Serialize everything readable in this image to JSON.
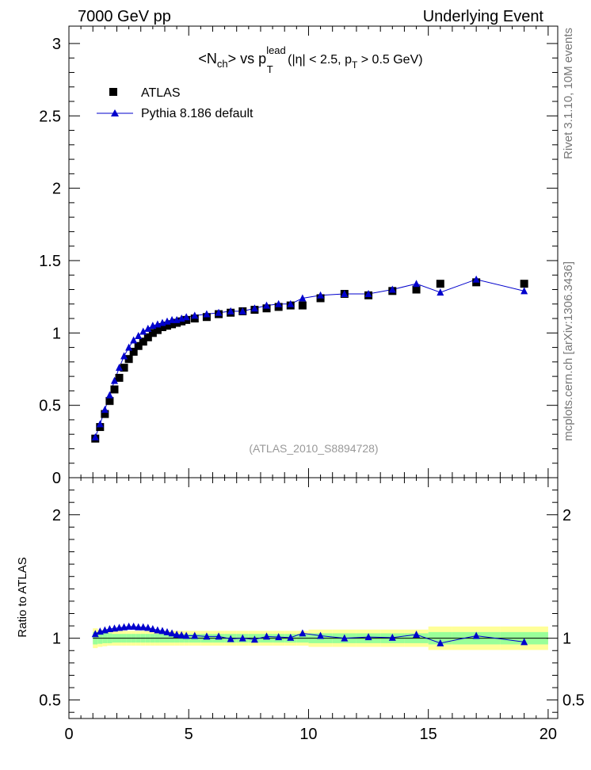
{
  "header": {
    "left": "7000 GeV pp",
    "right": "Underlying Event"
  },
  "side_labels": {
    "rivet": "Rivet 3.1.10, 10M events",
    "mcplots": "mcplots.cern.ch [arXiv:1306.3436]"
  },
  "title": {
    "prefix": "<N",
    "ch": "ch",
    "mid": "> vs p",
    "lead": "lead",
    "T": "T",
    "cut1": " (|η| < 2.5, p",
    "cut2": " > 0.5 GeV)"
  },
  "analysis_id": "(ATLAS_2010_S8894728)",
  "chart_data": [
    {
      "type": "scatter",
      "panel": "main",
      "ylim": [
        0,
        3.12
      ],
      "xlim": [
        0,
        20.4
      ],
      "yticks": [
        "0.5",
        "1",
        "1.5",
        "2",
        "2.5",
        "3"
      ],
      "ytick_values": [
        0.5,
        1,
        1.5,
        2,
        2.5,
        3
      ],
      "legend_position": "top-left",
      "series": [
        {
          "name": "ATLAS",
          "color": "#000000",
          "marker": "square",
          "x": [
            1.1,
            1.3,
            1.5,
            1.7,
            1.9,
            2.1,
            2.3,
            2.5,
            2.7,
            2.9,
            3.1,
            3.3,
            3.5,
            3.7,
            3.9,
            4.1,
            4.3,
            4.5,
            4.7,
            4.9,
            5.25,
            5.75,
            6.25,
            6.75,
            7.25,
            7.75,
            8.25,
            8.75,
            9.25,
            9.75,
            10.5,
            11.5,
            12.5,
            13.5,
            14.5,
            15.5,
            17.0,
            19.0
          ],
          "y": [
            0.27,
            0.35,
            0.44,
            0.53,
            0.61,
            0.69,
            0.76,
            0.82,
            0.87,
            0.91,
            0.94,
            0.97,
            1.0,
            1.02,
            1.04,
            1.05,
            1.06,
            1.07,
            1.08,
            1.09,
            1.1,
            1.11,
            1.13,
            1.14,
            1.15,
            1.16,
            1.17,
            1.18,
            1.19,
            1.19,
            1.24,
            1.27,
            1.26,
            1.29,
            1.3,
            1.34,
            1.35,
            1.34
          ]
        },
        {
          "name": "Pythia 8.186 default",
          "color": "#0000cc",
          "marker": "triangle",
          "x": [
            1.1,
            1.3,
            1.5,
            1.7,
            1.9,
            2.1,
            2.3,
            2.5,
            2.7,
            2.9,
            3.1,
            3.3,
            3.5,
            3.7,
            3.9,
            4.1,
            4.3,
            4.5,
            4.7,
            4.9,
            5.25,
            5.75,
            6.25,
            6.75,
            7.25,
            7.75,
            8.25,
            8.75,
            9.25,
            9.75,
            10.5,
            11.5,
            12.5,
            13.5,
            14.5,
            15.5,
            17.0,
            19.0
          ],
          "y": [
            0.28,
            0.37,
            0.47,
            0.57,
            0.67,
            0.76,
            0.84,
            0.9,
            0.95,
            0.98,
            1.01,
            1.03,
            1.05,
            1.06,
            1.07,
            1.08,
            1.09,
            1.09,
            1.1,
            1.11,
            1.12,
            1.13,
            1.14,
            1.15,
            1.15,
            1.17,
            1.19,
            1.2,
            1.2,
            1.24,
            1.26,
            1.27,
            1.27,
            1.3,
            1.34,
            1.28,
            1.37,
            1.29
          ]
        }
      ]
    },
    {
      "type": "line",
      "panel": "ratio",
      "ylabel": "Ratio to ATLAS",
      "ylim": [
        0.35,
        2.3
      ],
      "xlim": [
        0,
        20.4
      ],
      "yticks": [
        "0.5",
        "1",
        "2"
      ],
      "ytick_values": [
        0.5,
        1,
        2
      ],
      "xticks": [
        "0",
        "5",
        "10",
        "15",
        "20"
      ],
      "xtick_values": [
        0,
        5,
        10,
        15,
        20
      ],
      "bands": {
        "inner_color": "#99ff99",
        "outer_color": "#ffff99",
        "x_edges": [
          1.0,
          1.2,
          1.4,
          1.6,
          1.8,
          2.0,
          2.2,
          2.4,
          2.6,
          2.8,
          3.0,
          3.2,
          3.4,
          3.6,
          3.8,
          4.0,
          4.2,
          4.4,
          4.6,
          4.8,
          5.0,
          5.5,
          6.0,
          6.5,
          7.0,
          7.5,
          8.0,
          8.5,
          9.0,
          9.5,
          10.0,
          11.0,
          12.0,
          13.0,
          14.0,
          15.0,
          16.0,
          18.0,
          20.0
        ],
        "inner_half": [
          0.05,
          0.045,
          0.04,
          0.04,
          0.035,
          0.035,
          0.035,
          0.035,
          0.035,
          0.035,
          0.035,
          0.035,
          0.035,
          0.035,
          0.035,
          0.035,
          0.035,
          0.035,
          0.035,
          0.035,
          0.035,
          0.035,
          0.035,
          0.035,
          0.035,
          0.035,
          0.035,
          0.035,
          0.035,
          0.035,
          0.04,
          0.04,
          0.04,
          0.04,
          0.04,
          0.05,
          0.05,
          0.05
        ],
        "outer_half": [
          0.08,
          0.07,
          0.065,
          0.06,
          0.06,
          0.06,
          0.06,
          0.06,
          0.06,
          0.06,
          0.06,
          0.06,
          0.06,
          0.06,
          0.06,
          0.06,
          0.06,
          0.06,
          0.06,
          0.06,
          0.06,
          0.06,
          0.06,
          0.06,
          0.06,
          0.06,
          0.06,
          0.06,
          0.06,
          0.06,
          0.07,
          0.07,
          0.07,
          0.07,
          0.07,
          0.095,
          0.095,
          0.095
        ]
      },
      "series": [
        {
          "name": "Pythia 8.186 default",
          "color": "#0000cc",
          "marker": "triangle",
          "x": [
            1.1,
            1.3,
            1.5,
            1.7,
            1.9,
            2.1,
            2.3,
            2.5,
            2.7,
            2.9,
            3.1,
            3.3,
            3.5,
            3.7,
            3.9,
            4.1,
            4.3,
            4.5,
            4.7,
            4.9,
            5.25,
            5.75,
            6.25,
            6.75,
            7.25,
            7.75,
            8.25,
            8.75,
            9.25,
            9.75,
            10.5,
            11.5,
            12.5,
            13.5,
            14.5,
            15.5,
            17.0,
            19.0
          ],
          "y": [
            1.035,
            1.055,
            1.065,
            1.075,
            1.08,
            1.085,
            1.09,
            1.095,
            1.095,
            1.09,
            1.09,
            1.085,
            1.075,
            1.065,
            1.06,
            1.05,
            1.04,
            1.03,
            1.025,
            1.02,
            1.02,
            1.015,
            1.015,
            0.995,
            1.0,
            0.99,
            1.015,
            1.01,
            1.005,
            1.04,
            1.02,
            1.0,
            1.01,
            1.005,
            1.03,
            0.96,
            1.02,
            0.97
          ]
        }
      ]
    }
  ]
}
